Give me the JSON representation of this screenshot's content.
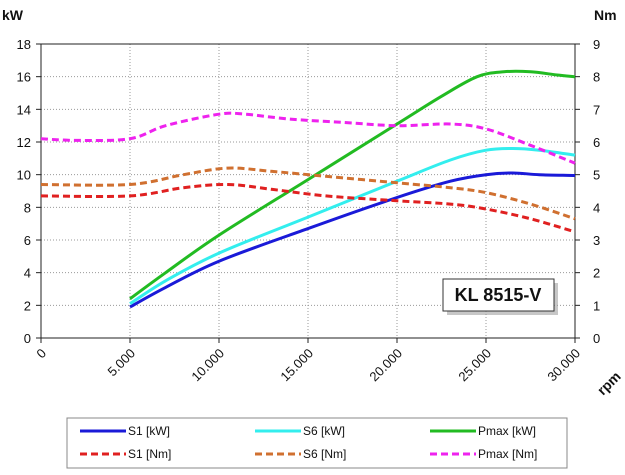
{
  "chart_data": {
    "type": "line",
    "model_label": "KL 8515-V",
    "x_unit": "rpm",
    "y_left_unit": "kW",
    "y_right_unit": "Nm",
    "xlim": [
      0,
      30000
    ],
    "ylim_left": [
      0,
      18
    ],
    "ylim_right": [
      0,
      9
    ],
    "grid": true,
    "x_ticks": [
      0,
      5000,
      10000,
      15000,
      20000,
      25000,
      30000
    ],
    "x_tick_labels": [
      "0",
      "5.000",
      "10.000",
      "15.000",
      "20.000",
      "25.000",
      "30.000"
    ],
    "y_left_ticks": [
      0,
      2,
      4,
      6,
      8,
      10,
      12,
      14,
      16,
      18
    ],
    "y_left_tick_labels": [
      "0",
      "2",
      "4",
      "6",
      "8",
      "10",
      "12",
      "14",
      "16",
      "18"
    ],
    "y_right_ticks": [
      0,
      1,
      2,
      3,
      4,
      5,
      6,
      7,
      8,
      9
    ],
    "y_right_tick_labels": [
      "0",
      "1",
      "2",
      "3",
      "4",
      "5",
      "6",
      "7",
      "8",
      "9"
    ],
    "legend_position": "bottom",
    "series": [
      {
        "name": "S1 [kW]",
        "axis": "left",
        "color": "#1a1ad8",
        "dash": false,
        "x": [
          5000,
          7000,
          10000,
          15000,
          20000,
          23000,
          25000,
          26500,
          28000,
          30000
        ],
        "y": [
          1.9,
          3.1,
          4.7,
          6.7,
          8.6,
          9.6,
          10.0,
          10.1,
          10.0,
          9.95
        ]
      },
      {
        "name": "S6 [kW]",
        "axis": "left",
        "color": "#33eeee",
        "dash": false,
        "x": [
          5000,
          7000,
          10000,
          15000,
          20000,
          23000,
          25000,
          26500,
          28000,
          30000
        ],
        "y": [
          2.1,
          3.5,
          5.2,
          7.4,
          9.6,
          10.9,
          11.5,
          11.6,
          11.5,
          11.2
        ]
      },
      {
        "name": "Pmax [kW]",
        "axis": "left",
        "color": "#22bb22",
        "dash": false,
        "x": [
          5000,
          7000,
          10000,
          15000,
          20000,
          22500,
          24500,
          26000,
          27500,
          29000,
          30000
        ],
        "y": [
          2.4,
          4.0,
          6.3,
          9.7,
          13.1,
          14.8,
          16.0,
          16.3,
          16.3,
          16.1,
          16.0
        ]
      },
      {
        "name": "S1 [Nm]",
        "axis": "right",
        "color": "#e02020",
        "dash": true,
        "x": [
          0,
          5000,
          8000,
          10500,
          13000,
          16000,
          20000,
          23000,
          25000,
          27500,
          30000
        ],
        "y": [
          4.35,
          4.35,
          4.6,
          4.7,
          4.55,
          4.35,
          4.2,
          4.1,
          3.95,
          3.65,
          3.25
        ]
      },
      {
        "name": "S6 [Nm]",
        "axis": "right",
        "color": "#d07030",
        "dash": true,
        "x": [
          0,
          5000,
          8000,
          10500,
          13000,
          16000,
          20000,
          23000,
          25000,
          27500,
          30000
        ],
        "y": [
          4.7,
          4.7,
          5.0,
          5.2,
          5.1,
          4.95,
          4.75,
          4.6,
          4.45,
          4.1,
          3.65
        ]
      },
      {
        "name": "Pmax [Nm]",
        "axis": "right",
        "color": "#ee22ee",
        "dash": true,
        "x": [
          0,
          2000,
          5000,
          7000,
          10000,
          11500,
          14000,
          17000,
          20000,
          23000,
          25000,
          27500,
          30000
        ],
        "y": [
          6.1,
          6.05,
          6.1,
          6.5,
          6.85,
          6.85,
          6.7,
          6.6,
          6.5,
          6.55,
          6.4,
          5.9,
          5.35
        ]
      }
    ]
  }
}
